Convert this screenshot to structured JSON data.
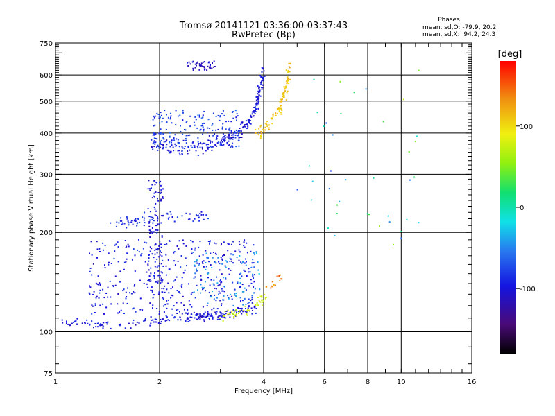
{
  "chart_data": {
    "type": "scatter",
    "title": "Tromsø 20141121 03:36:00-03:37:43",
    "subtitle": "RwPretec (Bp)",
    "phase_stats": {
      "heading": "Phases",
      "line_o": "mean, sd,O: -79.9, 20.2",
      "line_x": "mean, sd,X:  94.2, 24.3"
    },
    "xlabel": "Frequency [MHz]",
    "ylabel": "Stationary phase Virtual Height [km]",
    "xscale": "log",
    "yscale": "log",
    "xlim": [
      1,
      16
    ],
    "ylim": [
      75,
      750
    ],
    "xticks": [
      1,
      2,
      4,
      6,
      8,
      10,
      16
    ],
    "xtick_labels": [
      "1",
      "2",
      "4",
      "6",
      "8",
      "10",
      "16"
    ],
    "x_gridlines": [
      2,
      4,
      6,
      8,
      10
    ],
    "yticks": [
      75,
      100,
      200,
      300,
      400,
      500,
      600,
      750
    ],
    "ytick_labels": [
      "75",
      "100",
      "200",
      "300",
      "400",
      "500",
      "600",
      "750"
    ],
    "y_gridlines": [
      100,
      200,
      300,
      400,
      500,
      600
    ],
    "colorbar": {
      "label": "[deg]",
      "range": [
        -180,
        180
      ],
      "ticks": [
        100,
        0,
        -100
      ],
      "tick_labels": [
        "100",
        "0",
        "-100"
      ]
    },
    "colors": {
      "gridline": "#000000",
      "deep_blue": "#1e2ad8",
      "blue": "#2f6ee8",
      "cyan": "#23c8e8",
      "yellow": "#e8e61c",
      "orange": "#f08a1c",
      "red": "#e83018"
    },
    "clusters": [
      {
        "name": "E-region base trace",
        "kind": "curve",
        "path": [
          [
            1.05,
            108
          ],
          [
            1.2,
            106
          ],
          [
            1.4,
            105
          ],
          [
            1.7,
            106
          ],
          [
            2.0,
            109
          ],
          [
            2.3,
            110
          ],
          [
            2.6,
            111
          ],
          [
            2.9,
            112
          ],
          [
            3.2,
            114
          ],
          [
            3.5,
            116
          ],
          [
            3.8,
            118
          ]
        ],
        "spread_y": 0.02,
        "count": 190,
        "phase": -98
      },
      {
        "name": "E-region high-frequency end",
        "kind": "curve",
        "path": [
          [
            3.0,
            112
          ],
          [
            3.3,
            114
          ],
          [
            3.6,
            117
          ],
          [
            3.9,
            124
          ],
          [
            4.1,
            130
          ]
        ],
        "spread_y": 0.025,
        "count": 55,
        "phase": 75
      },
      {
        "name": "E-region orange tail",
        "kind": "curve",
        "path": [
          [
            4.0,
            130
          ],
          [
            4.3,
            140
          ],
          [
            4.6,
            150
          ]
        ],
        "spread_y": 0.03,
        "count": 14,
        "phase": 140
      },
      {
        "name": "Spread E echoes",
        "kind": "box",
        "xr": [
          1.25,
          3.8
        ],
        "yr": [
          112,
          190
        ],
        "count": 420,
        "phase": -95
      },
      {
        "name": "Spread E cyan echoes",
        "kind": "box",
        "xr": [
          2.5,
          3.9
        ],
        "yr": [
          120,
          175
        ],
        "count": 90,
        "phase": -45
      },
      {
        "name": "Vertical stripe near 2 MHz",
        "kind": "box",
        "xr": [
          1.85,
          2.05
        ],
        "yr": [
          140,
          290
        ],
        "count": 110,
        "phase": -100
      },
      {
        "name": "Sporadic layer near 220 km",
        "kind": "curve",
        "path": [
          [
            1.45,
            213
          ],
          [
            1.7,
            218
          ],
          [
            2.0,
            222
          ],
          [
            2.4,
            224
          ],
          [
            2.8,
            224
          ]
        ],
        "spread_y": 0.025,
        "count": 75,
        "phase": -88
      },
      {
        "name": "F-region main trace",
        "kind": "curve",
        "path": [
          [
            1.9,
            370
          ],
          [
            2.2,
            360
          ],
          [
            2.6,
            360
          ],
          [
            3.0,
            375
          ],
          [
            3.3,
            395
          ],
          [
            3.6,
            430
          ],
          [
            3.8,
            480
          ],
          [
            3.95,
            560
          ],
          [
            4.0,
            630
          ]
        ],
        "spread_y": 0.035,
        "count": 230,
        "phase": -100
      },
      {
        "name": "F-region spread echoes",
        "kind": "box",
        "xr": [
          1.9,
          3.4
        ],
        "yr": [
          360,
          470
        ],
        "count": 200,
        "phase": -80
      },
      {
        "name": "F-region X-mode trace",
        "kind": "curve",
        "path": [
          [
            3.8,
            390
          ],
          [
            4.1,
            420
          ],
          [
            4.4,
            460
          ],
          [
            4.6,
            520
          ],
          [
            4.7,
            580
          ],
          [
            4.75,
            640
          ]
        ],
        "spread_y": 0.03,
        "count": 100,
        "phase": 110
      },
      {
        "name": "Top blob near 640 km",
        "kind": "box",
        "xr": [
          2.4,
          2.9
        ],
        "yr": [
          620,
          660
        ],
        "count": 40,
        "phase": -110
      },
      {
        "name": "Sparse scattered echoes",
        "kind": "box",
        "xr": [
          4.5,
          11.5
        ],
        "yr": [
          180,
          620
        ],
        "count": 40,
        "phase": 0
      }
    ]
  }
}
